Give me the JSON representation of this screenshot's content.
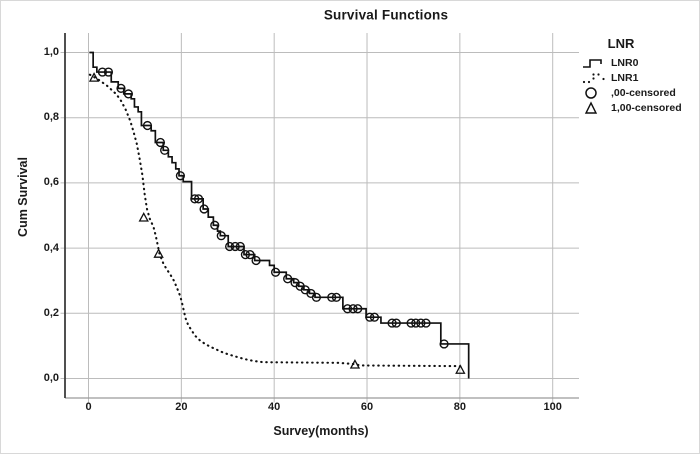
{
  "figure": {
    "title": "Survival Functions"
  },
  "axes": {
    "x": {
      "label": "Survey(months)",
      "tick_values": [
        0,
        20,
        40,
        60,
        80,
        100
      ],
      "tick_labels": [
        "0",
        "20",
        "40",
        "60",
        "80",
        "100"
      ]
    },
    "y": {
      "label": "Cum Survival",
      "tick_values": [
        1.0,
        0.8,
        0.6,
        0.4,
        0.2,
        0.0
      ],
      "tick_labels": [
        "1,0",
        "0,8",
        "0,6",
        "0,4",
        "0,2",
        "0,0"
      ]
    }
  },
  "legend": {
    "title": "LNR",
    "entries": [
      {
        "label": "LNR0",
        "symbol": "solid-step-line"
      },
      {
        "label": "LNR1",
        "symbol": "dotted-line"
      },
      {
        "label": ",00-censored",
        "symbol": "open-circle"
      },
      {
        "label": "1,00-censored",
        "symbol": "open-triangle"
      }
    ]
  },
  "colors": {
    "curve": "#111111",
    "grid": "#bcbcbc",
    "frame": "#9a9a9a",
    "axis": "#3d3d3d",
    "text": "#1a1a1a",
    "background": "#ffffff"
  },
  "chart_data": {
    "type": "line",
    "subtype": "kaplan-meier-step",
    "title": "Survival Functions",
    "xlabel": "Survey(months)",
    "ylabel": "Cum Survival",
    "xlim": [
      0,
      100
    ],
    "ylim": [
      0.0,
      1.0
    ],
    "grid": true,
    "legend_position": "right",
    "series": [
      {
        "name": "LNR0",
        "style": "solid-step",
        "points": [
          [
            0.2,
            1.0
          ],
          [
            1.0,
            0.955
          ],
          [
            1.8,
            0.94
          ],
          [
            4.9,
            0.91
          ],
          [
            6.4,
            0.89
          ],
          [
            7.6,
            0.873
          ],
          [
            9.2,
            0.858
          ],
          [
            9.9,
            0.833
          ],
          [
            10.7,
            0.818
          ],
          [
            11.4,
            0.776
          ],
          [
            13.5,
            0.76
          ],
          [
            14.4,
            0.724
          ],
          [
            16.1,
            0.7
          ],
          [
            17.2,
            0.68
          ],
          [
            18.0,
            0.662
          ],
          [
            18.8,
            0.643
          ],
          [
            19.5,
            0.622
          ],
          [
            20.4,
            0.604
          ],
          [
            22.2,
            0.551
          ],
          [
            24.7,
            0.52
          ],
          [
            25.8,
            0.495
          ],
          [
            26.9,
            0.47
          ],
          [
            27.8,
            0.452
          ],
          [
            28.4,
            0.438
          ],
          [
            30.1,
            0.405
          ],
          [
            33.5,
            0.38
          ],
          [
            35.8,
            0.362
          ],
          [
            39.0,
            0.347
          ],
          [
            40.0,
            0.326
          ],
          [
            42.6,
            0.306
          ],
          [
            44.2,
            0.294
          ],
          [
            45.3,
            0.283
          ],
          [
            46.4,
            0.272
          ],
          [
            47.6,
            0.261
          ],
          [
            48.8,
            0.249
          ],
          [
            54.8,
            0.214
          ],
          [
            59.8,
            0.188
          ],
          [
            63.0,
            0.17
          ],
          [
            75.9,
            0.106
          ],
          [
            81.9,
            0.0
          ]
        ],
        "censored_circles": [
          [
            3.0,
            0.94
          ],
          [
            4.3,
            0.94
          ],
          [
            7.0,
            0.89
          ],
          [
            8.6,
            0.873
          ],
          [
            12.7,
            0.776
          ],
          [
            15.5,
            0.724
          ],
          [
            16.4,
            0.7
          ],
          [
            19.8,
            0.622
          ],
          [
            22.9,
            0.551
          ],
          [
            23.7,
            0.551
          ],
          [
            24.9,
            0.52
          ],
          [
            27.2,
            0.47
          ],
          [
            28.6,
            0.438
          ],
          [
            30.4,
            0.405
          ],
          [
            31.6,
            0.405
          ],
          [
            32.7,
            0.405
          ],
          [
            33.8,
            0.38
          ],
          [
            34.8,
            0.38
          ],
          [
            36.1,
            0.362
          ],
          [
            40.3,
            0.326
          ],
          [
            42.9,
            0.306
          ],
          [
            44.5,
            0.294
          ],
          [
            45.6,
            0.283
          ],
          [
            46.7,
            0.272
          ],
          [
            47.9,
            0.261
          ],
          [
            49.1,
            0.249
          ],
          [
            52.4,
            0.249
          ],
          [
            53.4,
            0.249
          ],
          [
            55.8,
            0.214
          ],
          [
            57.0,
            0.214
          ],
          [
            58.0,
            0.214
          ],
          [
            60.6,
            0.188
          ],
          [
            61.6,
            0.188
          ],
          [
            65.4,
            0.17
          ],
          [
            66.3,
            0.17
          ],
          [
            69.5,
            0.17
          ],
          [
            70.5,
            0.17
          ],
          [
            71.6,
            0.17
          ],
          [
            72.7,
            0.17
          ],
          [
            76.6,
            0.106
          ]
        ]
      },
      {
        "name": "LNR1",
        "style": "dotted",
        "points": [
          [
            0.3,
            0.932
          ],
          [
            2.0,
            0.918
          ],
          [
            4.0,
            0.898
          ],
          [
            6.0,
            0.872
          ],
          [
            7.0,
            0.852
          ],
          [
            8.0,
            0.825
          ],
          [
            9.0,
            0.79
          ],
          [
            9.7,
            0.757
          ],
          [
            10.4,
            0.72
          ],
          [
            11.0,
            0.675
          ],
          [
            11.6,
            0.625
          ],
          [
            12.1,
            0.565
          ],
          [
            12.6,
            0.52
          ],
          [
            13.2,
            0.49
          ],
          [
            14.0,
            0.465
          ],
          [
            14.5,
            0.437
          ],
          [
            14.9,
            0.41
          ],
          [
            15.3,
            0.382
          ],
          [
            16.2,
            0.35
          ],
          [
            17.0,
            0.332
          ],
          [
            17.7,
            0.317
          ],
          [
            18.4,
            0.3
          ],
          [
            19.0,
            0.28
          ],
          [
            19.7,
            0.255
          ],
          [
            20.1,
            0.235
          ],
          [
            20.5,
            0.21
          ],
          [
            20.9,
            0.185
          ],
          [
            21.5,
            0.163
          ],
          [
            22.2,
            0.148
          ],
          [
            22.9,
            0.132
          ],
          [
            24.0,
            0.117
          ],
          [
            25.1,
            0.106
          ],
          [
            26.3,
            0.097
          ],
          [
            27.4,
            0.09
          ],
          [
            28.6,
            0.082
          ],
          [
            30.1,
            0.074
          ],
          [
            31.8,
            0.067
          ],
          [
            33.5,
            0.06
          ],
          [
            35.5,
            0.054
          ],
          [
            37.6,
            0.05
          ],
          [
            54.0,
            0.048
          ],
          [
            57.4,
            0.044
          ],
          [
            58.6,
            0.04
          ],
          [
            79.5,
            0.038
          ],
          [
            81.0,
            0.036
          ]
        ],
        "censored_triangles": [
          [
            1.2,
            0.922
          ],
          [
            11.9,
            0.493
          ],
          [
            15.1,
            0.382
          ],
          [
            57.4,
            0.042
          ],
          [
            80.1,
            0.026
          ]
        ]
      }
    ]
  }
}
